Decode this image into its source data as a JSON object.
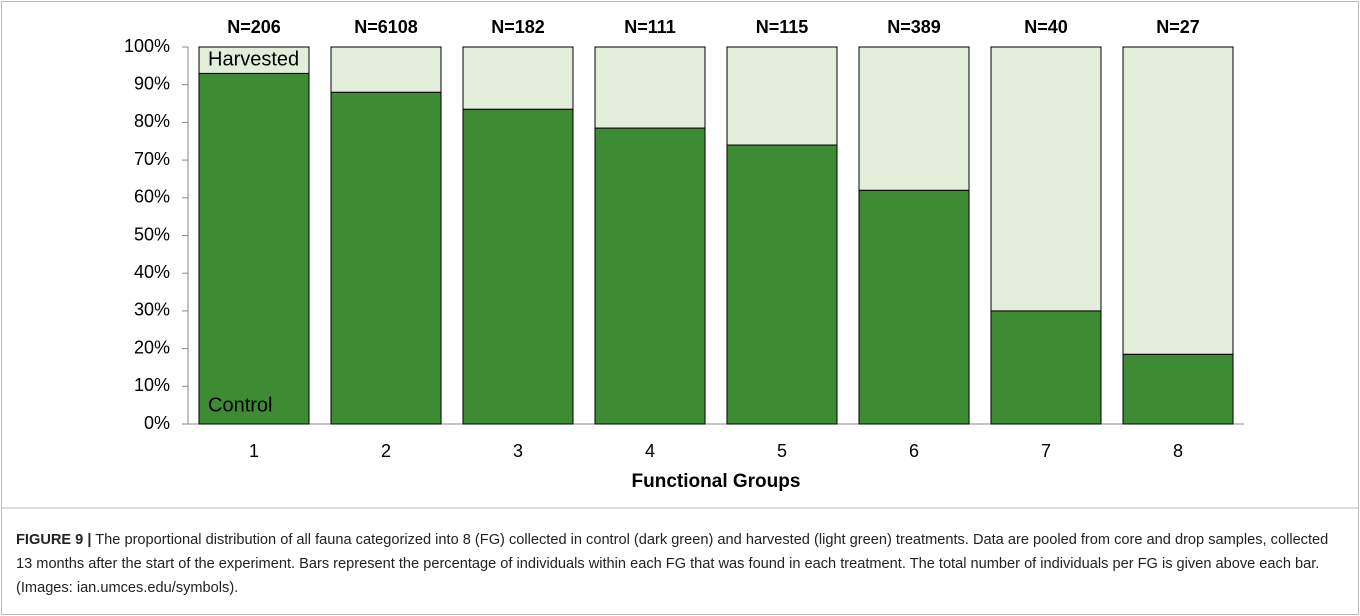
{
  "chart_data": {
    "type": "stacked_bar",
    "xlabel": "Functional Groups",
    "categories": [
      "1",
      "2",
      "3",
      "4",
      "5",
      "6",
      "7",
      "8"
    ],
    "annotations": [
      "N=206",
      "N=6108",
      "N=182",
      "N=111",
      "N=115",
      "N=389",
      "N=40",
      "N=27"
    ],
    "series": [
      {
        "name": "Control",
        "color": "#3d8b33",
        "values": [
          93,
          88,
          83.5,
          78.5,
          74,
          62,
          30,
          18.5
        ]
      },
      {
        "name": "Harvested",
        "color": "#e2eed9",
        "values": [
          7,
          12,
          16.5,
          21.5,
          26,
          38,
          70,
          81.5
        ]
      }
    ],
    "ylim": [
      0,
      100
    ],
    "yticks": [
      {
        "value": 0,
        "label": "0%"
      },
      {
        "value": 10,
        "label": "10%"
      },
      {
        "value": 20,
        "label": "20%"
      },
      {
        "value": 30,
        "label": "30%"
      },
      {
        "value": 40,
        "label": "40%"
      },
      {
        "value": 50,
        "label": "50%"
      },
      {
        "value": 60,
        "label": "60%"
      },
      {
        "value": 70,
        "label": "70%"
      },
      {
        "value": 80,
        "label": "80%"
      },
      {
        "value": 90,
        "label": "90%"
      },
      {
        "value": 100,
        "label": "100%"
      }
    ]
  },
  "caption_label": "FIGURE 9 |",
  "caption": "The proportional distribution of all fauna categorized into 8 (FG) collected in control (dark green) and harvested (light green) treatments. Data are pooled from core and drop samples, collected 13 months after the start of the experiment. Bars represent the percentage of individuals within each FG that was found in each treatment. The total number of individuals per FG is given above each bar. (Images: ian.umces.edu/symbols)."
}
